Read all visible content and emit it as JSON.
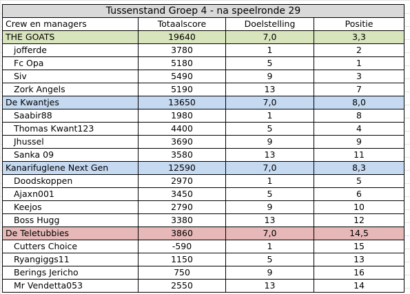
{
  "title": "Tussenstand Groep 4 - na speelronde 29",
  "columns": [
    "Crew en managers",
    "Totaalscore",
    "Doelstelling",
    "Positie"
  ],
  "teams": [
    {
      "name": "THE GOATS",
      "score": "19640",
      "target": "7,0",
      "position": "3,3",
      "color": "#d8e4bc",
      "members": [
        {
          "name": "jofferde",
          "score": "3780",
          "target": "1",
          "position": "2"
        },
        {
          "name": "Fc Opa",
          "score": "5180",
          "target": "5",
          "position": "1"
        },
        {
          "name": "Siv",
          "score": "5490",
          "target": "9",
          "position": "3"
        },
        {
          "name": "Zork Angels",
          "score": "5190",
          "target": "13",
          "position": "7"
        }
      ]
    },
    {
      "name": "De Kwantjes",
      "score": "13650",
      "target": "7,0",
      "position": "8,0",
      "color": "#c5d9f1",
      "members": [
        {
          "name": "Saabir88",
          "score": "1980",
          "target": "1",
          "position": "8"
        },
        {
          "name": "Thomas Kwant123",
          "score": "4400",
          "target": "5",
          "position": "4"
        },
        {
          "name": "Jhussel",
          "score": "3690",
          "target": "9",
          "position": "9"
        },
        {
          "name": "Sanka 09",
          "score": "3580",
          "target": "13",
          "position": "11"
        }
      ]
    },
    {
      "name": "Kanarifuglene Next Gen",
      "score": "12590",
      "target": "7,0",
      "position": "8,3",
      "color": "#c5d9f1",
      "members": [
        {
          "name": "Doodskoppen",
          "score": "2970",
          "target": "1",
          "position": "5"
        },
        {
          "name": "Ajaxn001",
          "score": "3450",
          "target": "5",
          "position": "6"
        },
        {
          "name": "Keejos",
          "score": "2790",
          "target": "9",
          "position": "10"
        },
        {
          "name": "Boss Hugg",
          "score": "3380",
          "target": "13",
          "position": "12"
        }
      ]
    },
    {
      "name": "De Teletubbies",
      "score": "3860",
      "target": "7,0",
      "position": "14,5",
      "color": "#e6b8b7",
      "members": [
        {
          "name": "Cutters Choice",
          "score": "-590",
          "target": "1",
          "position": "15"
        },
        {
          "name": "Ryangiggs11",
          "score": "1150",
          "target": "5",
          "position": "13"
        },
        {
          "name": "Berings Jericho",
          "score": "750",
          "target": "9",
          "position": "16"
        },
        {
          "name": "Mr Vendetta053",
          "score": "2550",
          "target": "13",
          "position": "14"
        }
      ]
    }
  ]
}
